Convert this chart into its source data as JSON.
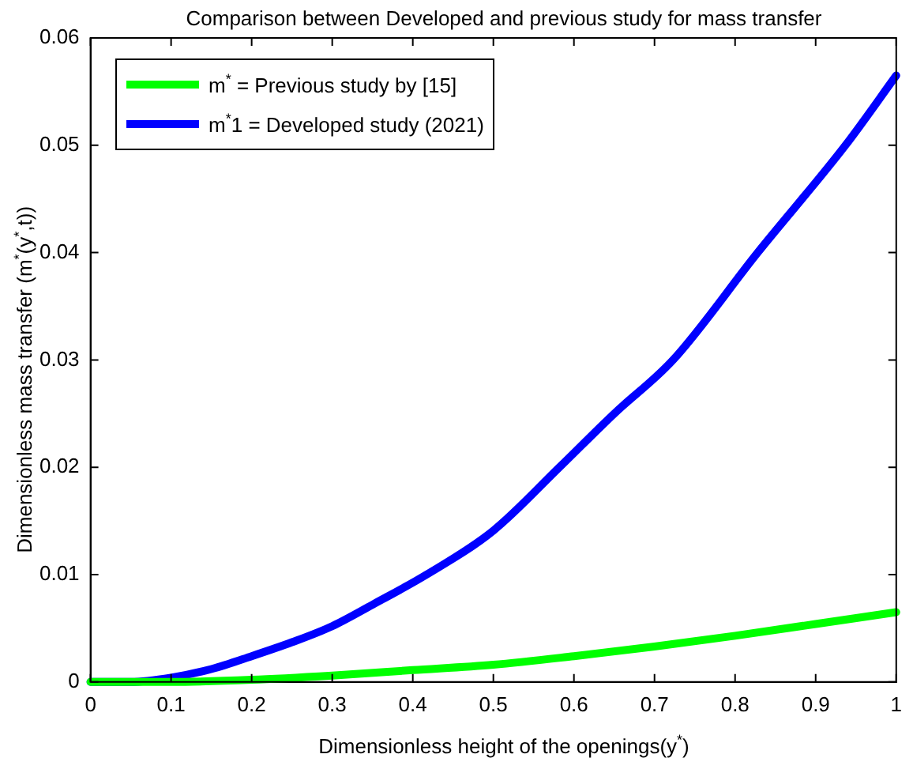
{
  "chart_data": {
    "type": "line",
    "title": "Comparison between Developed and previous study for mass transfer",
    "xlabel": "Dimensionless height of the openings(y$^{*}$)",
    "ylabel": "Dimensionless mass transfer (m$^{*}$(y$^{*}$,t))",
    "series": [
      {
        "name": "m$^{*}$ = Previous study by [15]",
        "color": "#00ff00",
        "x": [
          0,
          0.1,
          0.2,
          0.3,
          0.4,
          0.5,
          0.6,
          0.7,
          0.8,
          0.9,
          1
        ],
        "values": [
          0,
          0,
          0.0002,
          0.0006,
          0.0011,
          0.0016,
          0.0024,
          0.0033,
          0.0043,
          0.0054,
          0.0065
        ]
      },
      {
        "name": "m$^{*}$1 = Developed study (2021)",
        "color": "#0000ff",
        "x": [
          0,
          0.05,
          0.1,
          0.15,
          0.2,
          0.25,
          0.3,
          0.35,
          0.417,
          0.5,
          0.582,
          0.65,
          0.723,
          0.828,
          0.937,
          1
        ],
        "values": [
          0,
          0,
          0.0004,
          0.0012,
          0.0024,
          0.0037,
          0.0052,
          0.0072,
          0.01,
          0.0141,
          0.02,
          0.025,
          0.03,
          0.04,
          0.05,
          0.0565
        ]
      }
    ],
    "xlim": [
      0,
      1
    ],
    "xticks": [
      0,
      0.1,
      0.2,
      0.3,
      0.4,
      0.5,
      0.6,
      0.7,
      0.8,
      0.9,
      1
    ],
    "ylim": [
      0,
      0.06
    ],
    "yticks": [
      0,
      0.01,
      0.02,
      0.03,
      0.04,
      0.05,
      0.06
    ],
    "grid": false,
    "legend": "top left",
    "marker": "none",
    "line_style": "solid"
  }
}
